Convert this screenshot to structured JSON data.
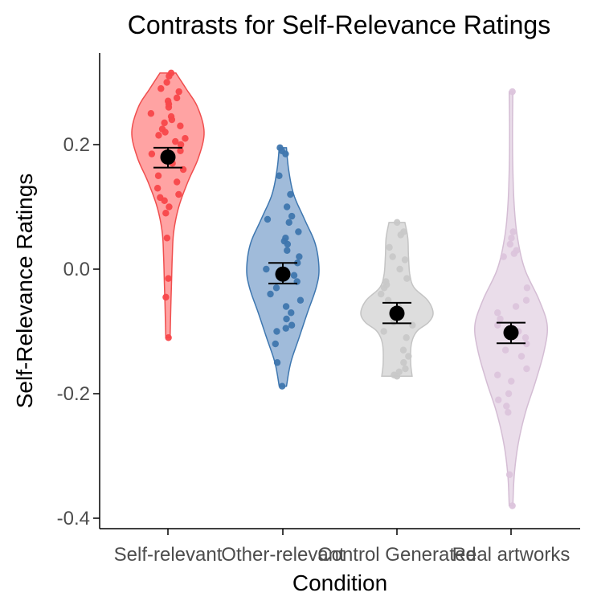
{
  "chart_data": {
    "type": "violin",
    "title": "Contrasts for Self-Relevance Ratings",
    "xlabel": "Condition",
    "ylabel": "Self-Relevance Ratings",
    "ylim": [
      -0.41,
      0.35
    ],
    "yticks": [
      0.2,
      0.0,
      -0.2,
      -0.4
    ],
    "ytick_labels": [
      "0.2",
      "0.0",
      "-0.2",
      "-0.4"
    ],
    "grid": false,
    "legend": "none",
    "categories": [
      "Self-relevant",
      "Other-relevant",
      "Control Generated",
      "Real artworks"
    ],
    "series": [
      {
        "category": "Self-relevant",
        "color": "#F8766D",
        "fill": "#FF9999",
        "stroke": "#F04E4E",
        "point_color": "#F8474A",
        "mean": 0.18,
        "ci": [
          0.163,
          0.195
        ],
        "range": [
          -0.11,
          0.315
        ],
        "density": [
          [
            -0.11,
            0.06
          ],
          [
            -0.06,
            0.08
          ],
          [
            -0.02,
            0.1
          ],
          [
            0.02,
            0.12
          ],
          [
            0.06,
            0.16
          ],
          [
            0.1,
            0.3
          ],
          [
            0.14,
            0.55
          ],
          [
            0.18,
            0.85
          ],
          [
            0.22,
            1.0
          ],
          [
            0.26,
            0.82
          ],
          [
            0.29,
            0.5
          ],
          [
            0.315,
            0.22
          ]
        ],
        "points": [
          0.315,
          0.31,
          0.3,
          0.29,
          0.285,
          0.275,
          0.27,
          0.265,
          0.26,
          0.25,
          0.245,
          0.24,
          0.235,
          0.23,
          0.225,
          0.22,
          0.215,
          0.21,
          0.205,
          0.2,
          0.19,
          0.185,
          0.17,
          0.16,
          0.15,
          0.14,
          0.13,
          0.12,
          0.115,
          0.11,
          0.1,
          0.09,
          0.05,
          -0.015,
          -0.045,
          -0.11
        ]
      },
      {
        "category": "Other-relevant",
        "color": "#4682B4",
        "fill": "#96B4D6",
        "stroke": "#3E77B0",
        "point_color": "#3F76AE",
        "mean": -0.008,
        "ci": [
          -0.023,
          0.01
        ],
        "range": [
          -0.188,
          0.195
        ],
        "density": [
          [
            -0.188,
            0.1
          ],
          [
            -0.15,
            0.22
          ],
          [
            -0.11,
            0.45
          ],
          [
            -0.07,
            0.68
          ],
          [
            -0.03,
            0.92
          ],
          [
            0.0,
            1.0
          ],
          [
            0.04,
            0.9
          ],
          [
            0.08,
            0.6
          ],
          [
            0.12,
            0.3
          ],
          [
            0.16,
            0.16
          ],
          [
            0.195,
            0.1
          ]
        ],
        "points": [
          0.195,
          0.19,
          0.185,
          0.15,
          0.12,
          0.1,
          0.085,
          0.08,
          0.075,
          0.06,
          0.05,
          0.045,
          0.04,
          0.03,
          0.02,
          0.01,
          0.0,
          -0.01,
          -0.02,
          -0.03,
          -0.04,
          -0.05,
          -0.06,
          -0.07,
          -0.08,
          -0.09,
          -0.095,
          -0.1,
          -0.12,
          -0.15,
          -0.188
        ]
      },
      {
        "category": "Control Generated",
        "color": "#BEBEBE",
        "fill": "#D9D9D9",
        "stroke": "#C4C4C4",
        "point_color": "#C8C8C8",
        "mean": -0.071,
        "ci": [
          -0.087,
          -0.054
        ],
        "range": [
          -0.172,
          0.075
        ],
        "density": [
          [
            -0.172,
            0.42
          ],
          [
            -0.15,
            0.38
          ],
          [
            -0.12,
            0.4
          ],
          [
            -0.1,
            0.55
          ],
          [
            -0.085,
            0.88
          ],
          [
            -0.07,
            1.0
          ],
          [
            -0.05,
            0.85
          ],
          [
            -0.03,
            0.48
          ],
          [
            -0.01,
            0.36
          ],
          [
            0.02,
            0.32
          ],
          [
            0.05,
            0.3
          ],
          [
            0.075,
            0.22
          ]
        ],
        "points": [
          0.075,
          0.06,
          0.055,
          0.035,
          0.02,
          0.015,
          0.0,
          -0.015,
          -0.02,
          -0.025,
          -0.03,
          -0.04,
          -0.05,
          -0.06,
          -0.07,
          -0.08,
          -0.085,
          -0.09,
          -0.1,
          -0.11,
          -0.13,
          -0.14,
          -0.15,
          -0.16,
          -0.165,
          -0.17,
          -0.172
        ]
      },
      {
        "category": "Real artworks",
        "color": "#D8BFD8",
        "fill": "#E8D9E8",
        "stroke": "#D4BDD4",
        "point_color": "#DCC4DC",
        "mean": -0.102,
        "ci": [
          -0.119,
          -0.086
        ],
        "range": [
          -0.38,
          0.285
        ],
        "density": [
          [
            -0.38,
            0.05
          ],
          [
            -0.33,
            0.09
          ],
          [
            -0.28,
            0.2
          ],
          [
            -0.23,
            0.4
          ],
          [
            -0.18,
            0.68
          ],
          [
            -0.13,
            0.92
          ],
          [
            -0.09,
            1.0
          ],
          [
            -0.05,
            0.78
          ],
          [
            0.0,
            0.38
          ],
          [
            0.05,
            0.18
          ],
          [
            0.1,
            0.09
          ],
          [
            0.16,
            0.05
          ],
          [
            0.22,
            0.04
          ],
          [
            0.285,
            0.05
          ]
        ],
        "points": [
          0.285,
          0.06,
          0.05,
          0.04,
          0.03,
          0.025,
          0.02,
          -0.03,
          -0.05,
          -0.06,
          -0.07,
          -0.08,
          -0.09,
          -0.1,
          -0.11,
          -0.12,
          -0.13,
          -0.14,
          -0.16,
          -0.17,
          -0.18,
          -0.2,
          -0.21,
          -0.22,
          -0.23,
          -0.33,
          -0.38
        ]
      }
    ],
    "mean_marker_color": "#000000"
  }
}
